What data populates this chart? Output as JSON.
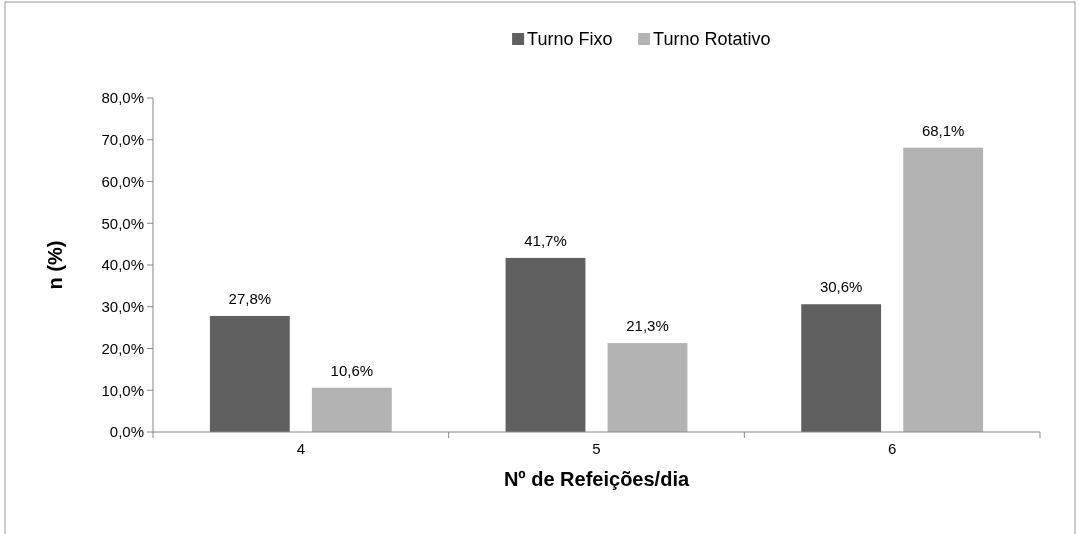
{
  "chart_data": {
    "type": "bar",
    "xlabel": "Nº de Refeições/dia",
    "ylabel": "n (%)",
    "categories": [
      "4",
      "5",
      "6"
    ],
    "series": [
      {
        "name": "Turno Fixo",
        "color": "#606060",
        "values": [
          27.8,
          41.7,
          30.6
        ],
        "value_labels": [
          "27,8%",
          "41,7%",
          "30,6%"
        ]
      },
      {
        "name": "Turno Rotativo",
        "color": "#b3b3b3",
        "values": [
          10.6,
          21.3,
          68.1
        ],
        "value_labels": [
          "10,6%",
          "21,3%",
          "68,1%"
        ]
      }
    ],
    "ylim": [
      0,
      80
    ],
    "yticks": [
      {
        "value": 0,
        "label": "0,0%"
      },
      {
        "value": 10,
        "label": "10,0%"
      },
      {
        "value": 20,
        "label": "20,0%"
      },
      {
        "value": 30,
        "label": "30,0%"
      },
      {
        "value": 40,
        "label": "40,0%"
      },
      {
        "value": 50,
        "label": "50,0%"
      },
      {
        "value": 60,
        "label": "60,0%"
      },
      {
        "value": 70,
        "label": "70,0%"
      },
      {
        "value": 80,
        "label": "80,0%"
      }
    ],
    "grid": false,
    "legend": "top"
  }
}
